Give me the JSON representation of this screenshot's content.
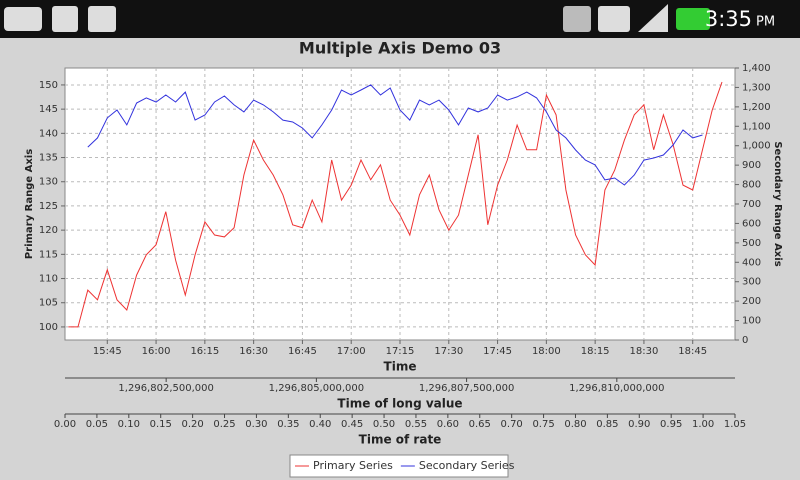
{
  "status_bar": {
    "time": "3:35",
    "ampm": "PM"
  },
  "chart_data": {
    "type": "line",
    "title": "Multiple Axis Demo 03",
    "ylabel": "Primary Range Axis",
    "y2label": "Secondary Range Axis",
    "xlabel": "Time",
    "x2label": "Time of long value",
    "x3label": "Time of rate",
    "x": [
      "15:33",
      "15:36",
      "15:39",
      "15:42",
      "15:45",
      "15:48",
      "15:51",
      "15:54",
      "15:57",
      "16:00",
      "16:03",
      "16:06",
      "16:09",
      "16:12",
      "16:15",
      "16:18",
      "16:21",
      "16:24",
      "16:27",
      "16:30",
      "16:33",
      "16:36",
      "16:39",
      "16:42",
      "16:45",
      "16:48",
      "16:51",
      "16:54",
      "16:57",
      "17:00",
      "17:03",
      "17:06",
      "17:09",
      "17:12",
      "17:15",
      "17:18",
      "17:21",
      "17:24",
      "17:27",
      "17:30",
      "17:33",
      "17:36",
      "17:39",
      "17:42",
      "17:45",
      "17:48",
      "17:51",
      "17:54",
      "17:57",
      "18:00",
      "18:03",
      "18:06",
      "18:09",
      "18:12",
      "18:15",
      "18:18",
      "18:21",
      "18:24",
      "18:27",
      "18:30",
      "18:33",
      "18:36",
      "18:39",
      "18:42",
      "18:45",
      "18:48",
      "18:51",
      "18:54"
    ],
    "series": [
      {
        "name": "Primary Series",
        "color": "#ee3333",
        "axis": "y",
        "values": [
          100,
          100,
          107.6,
          105.6,
          111.8,
          105.6,
          103.5,
          110.7,
          114.9,
          117,
          123.8,
          113.8,
          106.6,
          114.9,
          121.7,
          119,
          118.6,
          120.5,
          131.4,
          138.6,
          134.5,
          131.4,
          127.3,
          121.1,
          120.5,
          126.2,
          121.7,
          134.5,
          126.2,
          129.3,
          134.5,
          130.4,
          133.5,
          126.2,
          123.1,
          119,
          127.3,
          131.4,
          124.2,
          120,
          123.1,
          131.4,
          139.7,
          121.1,
          129.3,
          134.5,
          141.7,
          136.6,
          136.6,
          147.9,
          143.8,
          128.3,
          119,
          114.9,
          112.8,
          128.3,
          132.4,
          138.6,
          143.8,
          145.9,
          136.6,
          143.8,
          137.6,
          129.3,
          128.3,
          136.6,
          144.8,
          150.6
        ]
      },
      {
        "name": "Secondary Series",
        "color": "#3333dd",
        "axis": "y2",
        "values": [
          null,
          null,
          993,
          1040,
          1143,
          1184,
          1107,
          1220,
          1246,
          1225,
          1261,
          1225,
          1276,
          1132,
          1158,
          1225,
          1256,
          1210,
          1174,
          1235,
          1210,
          1174,
          1132,
          1122,
          1091,
          1040,
          1107,
          1184,
          1287,
          1261,
          1287,
          1313,
          1261,
          1297,
          1184,
          1132,
          1235,
          1210,
          1235,
          1184,
          1107,
          1194,
          1174,
          1194,
          1261,
          1235,
          1251,
          1276,
          1246,
          1174,
          1081,
          1040,
          978,
          926,
          901,
          824,
          834,
          798,
          849,
          926,
          937,
          952,
          1004,
          1081,
          1040,
          1055,
          null,
          null
        ]
      }
    ],
    "xlim": [
      "15:32",
      "18:58"
    ],
    "xticks": [
      "15:45",
      "16:00",
      "16:15",
      "16:30",
      "16:45",
      "17:00",
      "17:15",
      "17:30",
      "17:45",
      "18:00",
      "18:15",
      "18:30",
      "18:45"
    ],
    "x2lim": [
      1296800816667,
      1296811966667
    ],
    "x2ticks": [
      {
        "value": 1296802500000,
        "label": "1,296,802,500,000"
      },
      {
        "value": 1296805000000,
        "label": "1,296,805,000,000"
      },
      {
        "value": 1296807500000,
        "label": "1,296,807,500,000"
      },
      {
        "value": 1296810000000,
        "label": "1,296,810,000,000"
      }
    ],
    "x3lim": [
      0,
      1.05
    ],
    "x3ticks": [
      {
        "value": 0,
        "label": "0.00"
      },
      0.05,
      {
        "value": 0.1,
        "label": "0.10"
      },
      0.15,
      {
        "value": 0.2,
        "label": "0.20"
      },
      0.25,
      {
        "value": 0.3,
        "label": "0.30"
      },
      0.35,
      {
        "value": 0.4,
        "label": "0.40"
      },
      0.45,
      {
        "value": 0.5,
        "label": "0.50"
      },
      0.55,
      {
        "value": 0.6,
        "label": "0.60"
      },
      0.65,
      {
        "value": 0.7,
        "label": "0.70"
      },
      0.75,
      {
        "value": 0.8,
        "label": "0.80"
      },
      0.85,
      {
        "value": 0.9,
        "label": "0.90"
      },
      0.95,
      {
        "value": 1,
        "label": "1.00"
      },
      1.05
    ],
    "ylim": [
      97.3,
      153.5
    ],
    "yticks": [
      100,
      105,
      110,
      115,
      120,
      125,
      130,
      135,
      140,
      145,
      150
    ],
    "y2lim": [
      0,
      1400
    ],
    "y2ticks": [
      0,
      100,
      200,
      300,
      400,
      500,
      600,
      700,
      800,
      900,
      {
        "value": 1000,
        "label": "1,000"
      },
      {
        "value": 1100,
        "label": "1,100"
      },
      {
        "value": 1200,
        "label": "1,200"
      },
      {
        "value": 1300,
        "label": "1,300"
      },
      {
        "value": 1400,
        "label": "1,400"
      }
    ],
    "grid": true,
    "legend": "bottom"
  }
}
